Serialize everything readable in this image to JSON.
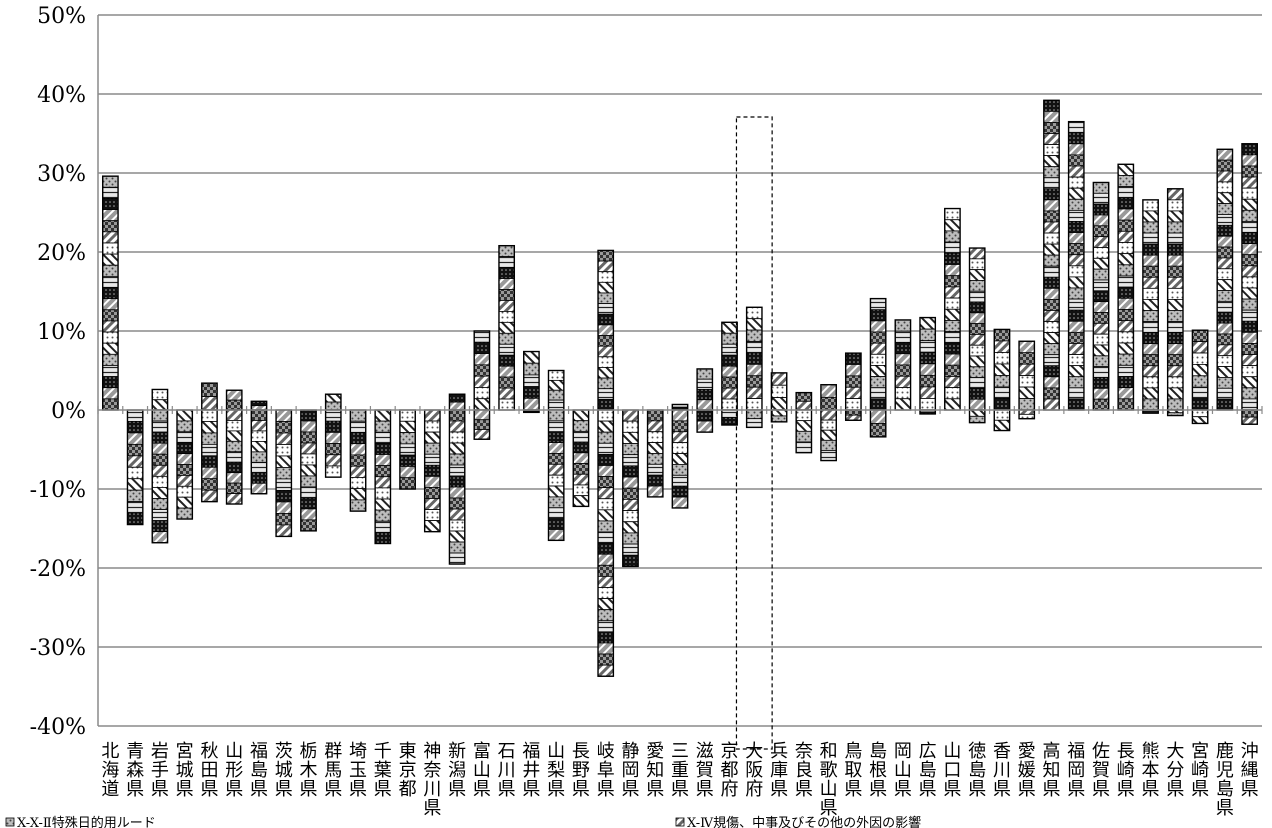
{
  "chart_data": {
    "type": "bar",
    "stacked": true,
    "ylim": [
      -0.4,
      0.5
    ],
    "yticks": [
      {
        "value": 0.5,
        "label": "50%"
      },
      {
        "value": 0.4,
        "label": "40%"
      },
      {
        "value": 0.3,
        "label": "30%"
      },
      {
        "value": 0.2,
        "label": "20%"
      },
      {
        "value": 0.1,
        "label": "10%"
      },
      {
        "value": 0.0,
        "label": "0%"
      },
      {
        "value": -0.1,
        "label": "-10%"
      },
      {
        "value": -0.2,
        "label": "-20%"
      },
      {
        "value": -0.3,
        "label": "-30%"
      },
      {
        "value": -0.4,
        "label": "-40%"
      }
    ],
    "grid": true,
    "highlight_category": "大阪府",
    "categories": [
      "北海道",
      "青森県",
      "岩手県",
      "宮城県",
      "秋田県",
      "山形県",
      "福島県",
      "茨城県",
      "栃木県",
      "群馬県",
      "埼玉県",
      "千葉県",
      "東京都",
      "神奈川県",
      "新潟県",
      "富山県",
      "石川県",
      "福井県",
      "山梨県",
      "長野県",
      "岐阜県",
      "静岡県",
      "愛知県",
      "三重県",
      "滋賀県",
      "京都府",
      "大阪府",
      "兵庫県",
      "奈良県",
      "和歌山県",
      "鳥取県",
      "島根県",
      "岡山県",
      "広島県",
      "山口県",
      "徳島県",
      "香川県",
      "愛媛県",
      "高知県",
      "福岡県",
      "佐賀県",
      "長崎県",
      "熊本県",
      "大分県",
      "宮崎県",
      "鹿児島県",
      "沖縄県"
    ],
    "totals_top": [
      0.296,
      0.0,
      0.026,
      0.0,
      0.034,
      0.025,
      0.011,
      0.0,
      0.0,
      0.02,
      0.0,
      0.0,
      0.0,
      0.0,
      0.02,
      0.1,
      0.208,
      0.074,
      0.05,
      0.0,
      0.202,
      0.0,
      0.0,
      0.007,
      0.052,
      0.111,
      0.13,
      0.047,
      0.022,
      0.032,
      0.072,
      0.141,
      0.114,
      0.117,
      0.255,
      0.205,
      0.102,
      0.087,
      0.392,
      0.365,
      0.288,
      0.311,
      0.266,
      0.28,
      0.101,
      0.33,
      0.337
    ],
    "totals_bottom": [
      0.0,
      -0.145,
      -0.168,
      -0.138,
      -0.116,
      -0.119,
      -0.106,
      -0.16,
      -0.153,
      -0.085,
      -0.128,
      -0.169,
      -0.1,
      -0.154,
      -0.195,
      -0.037,
      0.0,
      -0.003,
      -0.165,
      -0.122,
      -0.337,
      -0.198,
      -0.11,
      -0.124,
      -0.028,
      -0.019,
      -0.022,
      -0.015,
      -0.054,
      -0.064,
      -0.013,
      -0.034,
      0.0,
      -0.005,
      0.0,
      -0.016,
      -0.026,
      -0.011,
      0.0,
      0.0,
      0.0,
      0.0,
      -0.004,
      -0.007,
      -0.017,
      0.0,
      -0.018
    ],
    "legend": [
      {
        "label": "X-X-Ⅱ特殊日的用ルード"
      },
      {
        "label": "X-Ⅳ規傷、中事及びその他の外因の影響"
      }
    ]
  }
}
